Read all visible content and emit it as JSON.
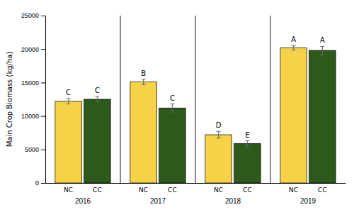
{
  "chart_data": {
    "type": "bar",
    "categories": [
      "2016",
      "2017",
      "2018",
      "2019"
    ],
    "series": [
      {
        "name": "NC",
        "color": "#F5D247",
        "values": [
          12200,
          15100,
          7200,
          20200
        ],
        "errors": [
          400,
          400,
          500,
          350
        ],
        "annotations": [
          "C",
          "B",
          "D",
          "A"
        ]
      },
      {
        "name": "CC",
        "color": "#2D5A1B",
        "values": [
          12500,
          11200,
          5900,
          19800
        ],
        "errors": [
          400,
          600,
          400,
          600
        ],
        "annotations": [
          "C",
          "C",
          "E",
          "A"
        ]
      }
    ],
    "ylabel": "Main Crop Biomass (kg/ha)",
    "ylim": [
      0,
      25000
    ],
    "yticks": [
      0,
      5000,
      10000,
      15000,
      20000,
      25000
    ],
    "grid": false
  }
}
